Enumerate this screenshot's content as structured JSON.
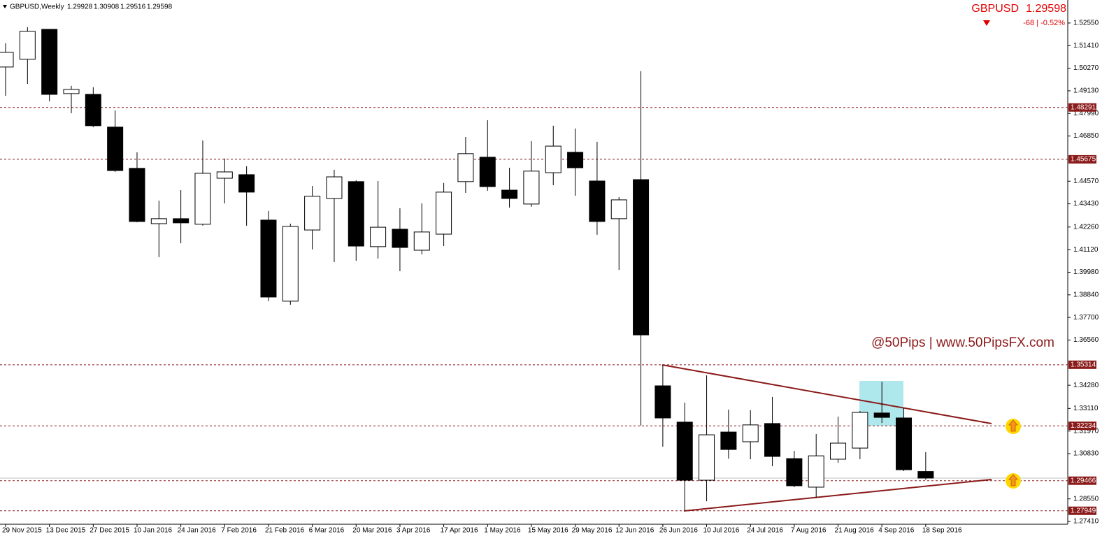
{
  "chart_data": {
    "type": "candlestick",
    "symbol": "GBPUSD,Weekly",
    "quote_symbol": "GBPUSD",
    "change": "-68 | -0.52%",
    "watermark": "@50Pips | www.50PipsFX.com",
    "x": [
      "29 Nov 2015",
      null,
      "13 Dec 2015",
      null,
      "27 Dec 2015",
      null,
      "10 Jan 2016",
      null,
      "24 Jan 2016",
      null,
      "7 Feb 2016",
      null,
      "21 Feb 2016",
      null,
      "6 Mar 2016",
      null,
      "20 Mar 2016",
      null,
      "3 Apr 2016",
      null,
      "17 Apr 2016",
      null,
      "1 May 2016",
      null,
      "15 May 2016",
      null,
      "29 May 2016",
      null,
      "12 Jun 2016",
      null,
      "26 Jun 2016",
      null,
      "10 Jul 2016",
      null,
      "24 Jul 2016",
      null,
      "7 Aug 2016",
      null,
      "21 Aug 2016",
      null,
      "4 Sep 2016",
      null,
      "18 Sep 2016"
    ],
    "open": [
      1.5033,
      1.5072,
      1.5223,
      1.4899,
      1.4895,
      1.473,
      1.4522,
      1.4243,
      1.4268,
      1.424,
      1.4472,
      1.449,
      1.4261,
      1.3852,
      1.4211,
      1.437,
      1.4455,
      1.4127,
      1.4215,
      1.4109,
      1.419,
      1.4455,
      1.4578,
      1.4412,
      1.4342,
      1.45,
      1.4603,
      1.4458,
      1.4268,
      1.4465,
      1.3425,
      1.3242,
      1.2949,
      1.3192,
      1.3143,
      1.3235,
      1.3058,
      1.2914,
      1.3055,
      1.3111,
      1.3288,
      1.3263,
      1.29928
    ],
    "high": [
      1.5153,
      1.5234,
      1.5225,
      1.4938,
      1.4931,
      1.4814,
      1.4603,
      1.4359,
      1.4412,
      1.4663,
      1.4571,
      1.4532,
      1.4307,
      1.4243,
      1.4433,
      1.4515,
      1.4462,
      1.4458,
      1.4321,
      1.4345,
      1.4448,
      1.468,
      1.4765,
      1.4525,
      1.4659,
      1.4737,
      1.4723,
      1.4656,
      1.4377,
      1.5012,
      1.3531,
      1.334,
      1.3478,
      1.3305,
      1.3302,
      1.3369,
      1.3097,
      1.3182,
      1.327,
      1.3298,
      1.3446,
      1.3312,
      1.30908
    ],
    "low": [
      1.4888,
      1.4948,
      1.486,
      1.48,
      1.473,
      1.4504,
      1.425,
      1.4074,
      1.4144,
      1.4233,
      1.4345,
      1.4233,
      1.3852,
      1.3834,
      1.4113,
      1.4049,
      1.4056,
      1.4067,
      1.4003,
      1.4088,
      1.413,
      1.4398,
      1.4409,
      1.4324,
      1.4328,
      1.4437,
      1.4384,
      1.4187,
      1.401,
      1.3224,
      1.3118,
      1.2794,
      1.2843,
      1.3058,
      1.3055,
      1.302,
      1.2914,
      1.2861,
      1.3037,
      1.3055,
      1.3238,
      1.2995,
      1.29516
    ],
    "close": [
      1.5107,
      1.5213,
      1.4895,
      1.492,
      1.4737,
      1.4511,
      1.4254,
      1.4268,
      1.4247,
      1.4497,
      1.4504,
      1.4402,
      1.3873,
      1.4229,
      1.4381,
      1.4479,
      1.413,
      1.4225,
      1.4123,
      1.4201,
      1.4402,
      1.4596,
      1.443,
      1.437,
      1.4508,
      1.4634,
      1.4525,
      1.4254,
      1.4363,
      1.3682,
      1.3263,
      1.2949,
      1.3178,
      1.3104,
      1.3228,
      1.3069,
      1.2921,
      1.3072,
      1.3136,
      1.3291,
      1.3266,
      1.3002,
      1.29598
    ],
    "up_color": "#ffffff",
    "down_color": "#000000",
    "line_color": "#000000",
    "levels": [
      1.48291,
      1.45675,
      1.35314,
      1.32234,
      1.29466,
      1.27949
    ],
    "level_color": "#8b1a1a",
    "ylim": [
      1.2727,
      1.5371
    ],
    "yticks": [
      {
        "value": 1.5255,
        "label": "1.52550"
      },
      {
        "value": 1.5141,
        "label": "1.51410"
      },
      {
        "value": 1.5027,
        "label": "1.50270"
      },
      {
        "value": 1.4913,
        "label": "1.49130"
      },
      {
        "value": 1.4799,
        "label": "1.47990"
      },
      {
        "value": 1.4685,
        "label": "1.46850"
      },
      {
        "value": 1.4457,
        "label": "1.44570"
      },
      {
        "value": 1.4343,
        "label": "1.43430"
      },
      {
        "value": 1.4226,
        "label": "1.42260"
      },
      {
        "value": 1.4112,
        "label": "1.41120"
      },
      {
        "value": 1.3998,
        "label": "1.39980"
      },
      {
        "value": 1.3884,
        "label": "1.38840"
      },
      {
        "value": 1.377,
        "label": "1.37700"
      },
      {
        "value": 1.3656,
        "label": "1.36560"
      },
      {
        "value": 1.3428,
        "label": "1.34280"
      },
      {
        "value": 1.3311,
        "label": "1.33110"
      },
      {
        "value": 1.3197,
        "label": "1.31970"
      },
      {
        "value": 1.3083,
        "label": "1.30830"
      },
      {
        "value": 1.2855,
        "label": "1.28550"
      },
      {
        "value": 1.2741,
        "label": "1.27410"
      }
    ],
    "grid": false
  }
}
